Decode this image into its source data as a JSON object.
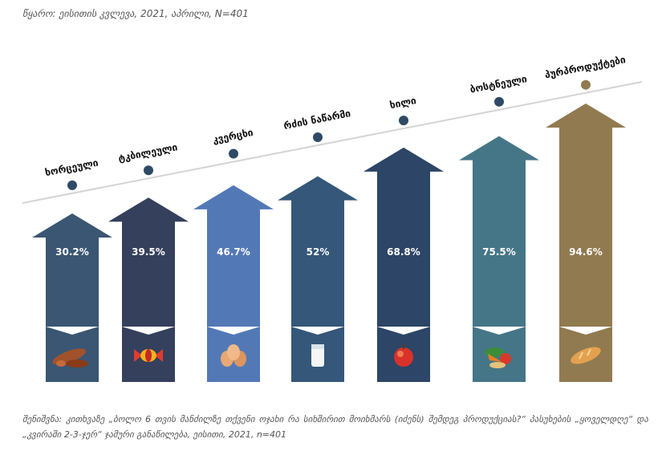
{
  "source": "წყარო: ეისითის კვლევა, 2021, აპრილი, N=401",
  "note": "შენიშვნა: კითხვაზე „ბოლო 6 თვის მანძილზე თქვენი ოჯახი რა სიხშირით მოიხმარს (იძენს) შემდეგ პროდუქციას?“ პასუხების „ყოველდღე“ და „კვირაში 2-3-ჯერ“ ჯამური განაწილება, ეისითი, 2021, n=401",
  "chart_data": {
    "type": "bar",
    "categories": [
      "ხორცეული",
      "ტკბილეული",
      "კვერცხი",
      "რძის ნაწარმი",
      "ხილი",
      "ბოსტნეული",
      "პურპროდუქტები"
    ],
    "values": [
      30.2,
      39.5,
      46.7,
      52,
      68.8,
      75.5,
      94.6
    ],
    "value_labels": [
      "30.2%",
      "39.5%",
      "46.7%",
      "52%",
      "68.8%",
      "75.5%",
      "94.6%"
    ],
    "colors": [
      "#3a5673",
      "#34405c",
      "#5279b6",
      "#34577a",
      "#2d4566",
      "#457687",
      "#917a50"
    ],
    "icons": [
      "sausage-icon",
      "candy-icon",
      "eggs-icon",
      "milk-icon",
      "apple-icon",
      "vegetables-icon",
      "bread-icon"
    ],
    "grid": false
  }
}
